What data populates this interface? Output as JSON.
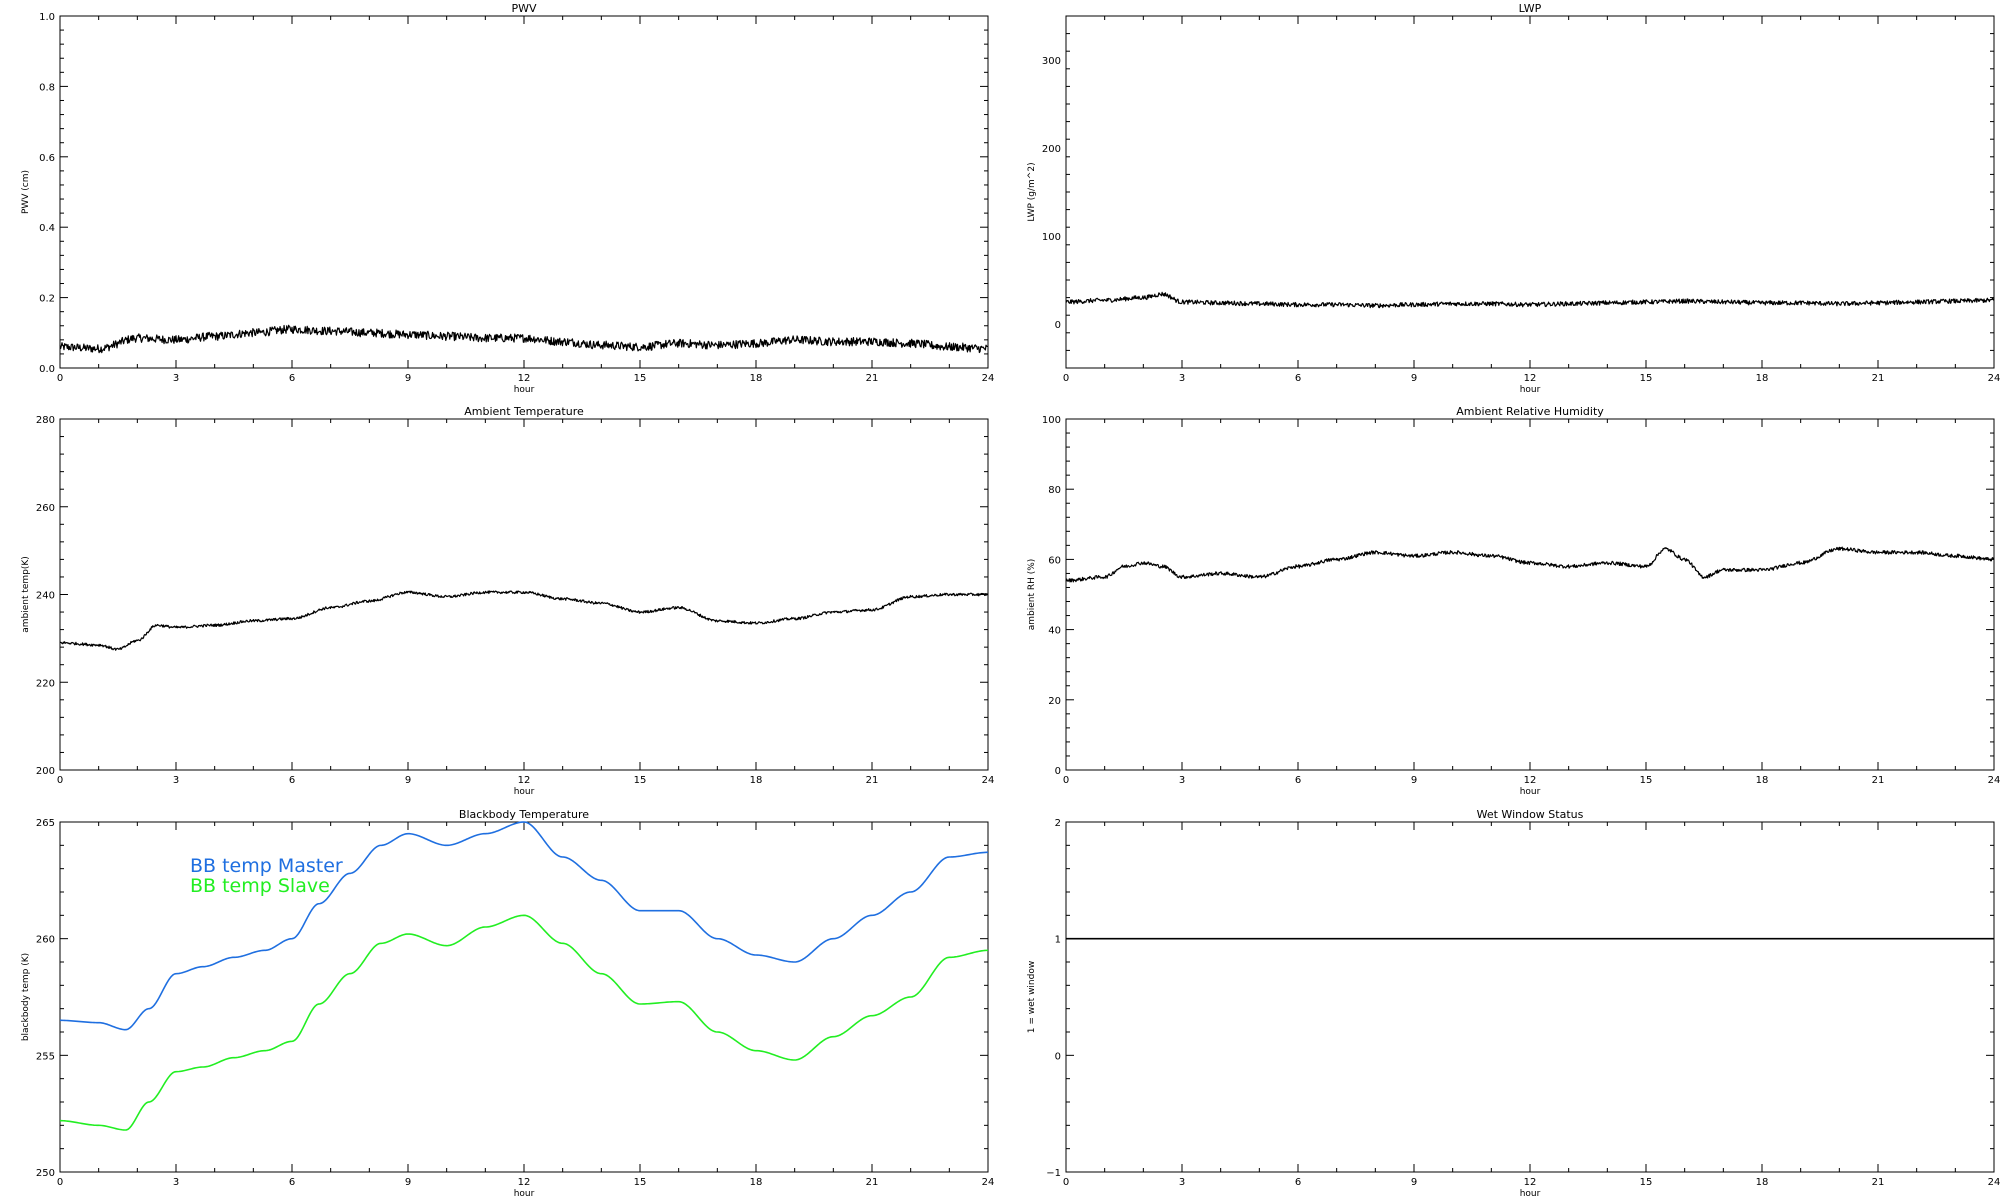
{
  "chart_data": [
    {
      "type": "line",
      "title": "PWV",
      "xlabel": "hour",
      "ylabel": "PWV (cm)",
      "xlim": [
        0,
        24
      ],
      "ylim": [
        0,
        1.0
      ],
      "xticks": [
        "0",
        "3",
        "6",
        "9",
        "12",
        "15",
        "18",
        "21",
        "24"
      ],
      "yticks": [
        "0.0",
        "0.2",
        "0.4",
        "0.6",
        "0.8",
        "1.0"
      ],
      "ytick_values": [
        0,
        0.2,
        0.4,
        0.6,
        0.8,
        1.0
      ],
      "noise": 0.012,
      "series": [
        {
          "color": "#000000",
          "x": [
            0,
            1,
            2,
            3,
            4,
            5,
            6,
            7,
            8,
            9,
            10,
            11,
            12,
            13,
            14,
            15,
            16,
            17,
            18,
            19,
            20,
            21,
            22,
            23,
            24
          ],
          "y": [
            0.06,
            0.055,
            0.085,
            0.08,
            0.09,
            0.1,
            0.11,
            0.105,
            0.1,
            0.095,
            0.09,
            0.085,
            0.085,
            0.075,
            0.065,
            0.06,
            0.07,
            0.065,
            0.07,
            0.08,
            0.075,
            0.075,
            0.07,
            0.06,
            0.055
          ]
        }
      ]
    },
    {
      "type": "line",
      "title": "LWP",
      "xlabel": "hour",
      "ylabel": "LWP (g/m^2)",
      "xlim": [
        0,
        24
      ],
      "ylim": [
        -50,
        350
      ],
      "xticks": [
        "0",
        "3",
        "6",
        "9",
        "12",
        "15",
        "18",
        "21",
        "24"
      ],
      "yticks": [
        "0",
        "100",
        "200",
        "300"
      ],
      "ytick_values": [
        0,
        100,
        200,
        300
      ],
      "noise": 2.5,
      "series": [
        {
          "color": "#000000",
          "x": [
            0,
            1,
            2,
            2.5,
            3,
            4,
            5,
            6,
            7,
            8,
            9,
            10,
            11,
            12,
            13,
            14,
            15,
            16,
            17,
            18,
            19,
            20,
            21,
            22,
            23,
            24
          ],
          "y": [
            25,
            27,
            30,
            34,
            25,
            24,
            23,
            22,
            22,
            21,
            22,
            23,
            23,
            22,
            23,
            24,
            25,
            26,
            25,
            24,
            24,
            23,
            24,
            25,
            26,
            27
          ]
        }
      ]
    },
    {
      "type": "line",
      "title": "Ambient Temperature",
      "xlabel": "hour",
      "ylabel": "ambient temp(K)",
      "xlim": [
        0,
        24
      ],
      "ylim": [
        200,
        280
      ],
      "xticks": [
        "0",
        "3",
        "6",
        "9",
        "12",
        "15",
        "18",
        "21",
        "24"
      ],
      "yticks": [
        "200",
        "220",
        "240",
        "260",
        "280"
      ],
      "ytick_values": [
        200,
        220,
        240,
        260,
        280
      ],
      "noise": 0.3,
      "series": [
        {
          "color": "#000000",
          "x": [
            0,
            1,
            1.5,
            2,
            2.5,
            3,
            4,
            5,
            6,
            7,
            8,
            9,
            10,
            11,
            12,
            13,
            14,
            15,
            16,
            17,
            18,
            19,
            20,
            21,
            22,
            23,
            24
          ],
          "y": [
            229,
            228.5,
            227.5,
            229.5,
            233,
            232.5,
            233,
            234,
            234.5,
            237,
            238.5,
            240.5,
            239.5,
            240.5,
            240.5,
            239,
            238,
            236,
            237,
            234,
            233.5,
            234.5,
            236,
            236.5,
            239.5,
            240,
            240
          ]
        }
      ]
    },
    {
      "type": "line",
      "title": "Ambient Relative Humidity",
      "xlabel": "hour",
      "ylabel": "ambient RH (%)",
      "xlim": [
        0,
        24
      ],
      "ylim": [
        0,
        100
      ],
      "xticks": [
        "0",
        "3",
        "6",
        "9",
        "12",
        "15",
        "18",
        "21",
        "24"
      ],
      "yticks": [
        "0",
        "20",
        "40",
        "60",
        "80",
        "100"
      ],
      "ytick_values": [
        0,
        20,
        40,
        60,
        80,
        100
      ],
      "noise": 0.5,
      "series": [
        {
          "color": "#000000",
          "x": [
            0,
            1,
            1.5,
            2,
            2.5,
            3,
            4,
            5,
            6,
            7,
            8,
            9,
            10,
            11,
            12,
            13,
            14,
            15,
            15.5,
            16,
            16.5,
            17,
            18,
            19,
            20,
            21,
            22,
            23,
            24
          ],
          "y": [
            54,
            55,
            58,
            59,
            58,
            55,
            56,
            55,
            58,
            60,
            62,
            61,
            62,
            61,
            59,
            58,
            59,
            58,
            63,
            60,
            55,
            57,
            57,
            59,
            63,
            62,
            62,
            61,
            60
          ]
        }
      ]
    },
    {
      "type": "line",
      "title": "Blackbody Temperature",
      "xlabel": "hour",
      "ylabel": "blackbody temp (K)",
      "xlim": [
        0,
        24
      ],
      "ylim": [
        250,
        265
      ],
      "xticks": [
        "0",
        "3",
        "6",
        "9",
        "12",
        "15",
        "18",
        "21",
        "24"
      ],
      "yticks": [
        "250",
        "255",
        "260",
        "265"
      ],
      "ytick_values": [
        250,
        255,
        260,
        265
      ],
      "noise": 0,
      "series": [
        {
          "name": "BB temp Master",
          "color": "#1f6fe0",
          "x": [
            0,
            1,
            1.7,
            2.3,
            3,
            3.7,
            4.5,
            5.3,
            6,
            6.7,
            7.5,
            8.3,
            9,
            10,
            11,
            12,
            13,
            14,
            15,
            16,
            17,
            18,
            19,
            20,
            21,
            22,
            23,
            24
          ],
          "y": [
            256.5,
            256.4,
            256.1,
            257,
            258.5,
            258.8,
            259.2,
            259.5,
            260,
            261.5,
            262.8,
            264,
            264.5,
            264,
            264.5,
            265,
            263.5,
            262.5,
            261.2,
            261.2,
            260,
            259.3,
            259,
            260,
            261,
            262,
            263.5,
            263.7
          ]
        },
        {
          "name": "BB temp Slave",
          "color": "#22ee22",
          "x": [
            0,
            1,
            1.7,
            2.3,
            3,
            3.7,
            4.5,
            5.3,
            6,
            6.7,
            7.5,
            8.3,
            9,
            10,
            11,
            12,
            13,
            14,
            15,
            16,
            17,
            18,
            19,
            20,
            21,
            22,
            23,
            24
          ],
          "y": [
            252.2,
            252,
            251.8,
            253,
            254.3,
            254.5,
            254.9,
            255.2,
            255.6,
            257.2,
            258.5,
            259.8,
            260.2,
            259.7,
            260.5,
            261,
            259.8,
            258.5,
            257.2,
            257.3,
            256,
            255.2,
            254.8,
            255.8,
            256.7,
            257.5,
            259.2,
            259.5
          ]
        }
      ]
    },
    {
      "type": "line",
      "title": "Wet Window Status",
      "xlabel": "hour",
      "ylabel": "1 = wet window",
      "xlim": [
        0,
        24
      ],
      "ylim": [
        -1,
        2
      ],
      "xticks": [
        "0",
        "3",
        "6",
        "9",
        "12",
        "15",
        "18",
        "21",
        "24"
      ],
      "yticks": [
        "−1",
        "0",
        "1",
        "2"
      ],
      "ytick_values": [
        -1,
        0,
        1,
        2
      ],
      "noise": 0,
      "series": [
        {
          "color": "#000000",
          "x": [
            0,
            24
          ],
          "y": [
            1,
            1
          ]
        }
      ]
    }
  ]
}
